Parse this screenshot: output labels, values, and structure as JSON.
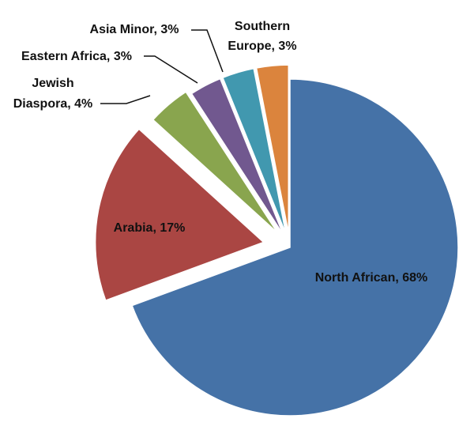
{
  "chart_data": {
    "type": "pie",
    "title": "",
    "legend": "none",
    "exploded": true,
    "slices": [
      {
        "name": "North African",
        "value": 68,
        "label": "North African, 68%",
        "color": "#4572A7"
      },
      {
        "name": "Arabia",
        "value": 17,
        "label": "Arabia, 17%",
        "color": "#AA4643"
      },
      {
        "name": "Jewish Diaspora",
        "value": 4,
        "label_lines": [
          "Jewish",
          "Diaspora, 4%"
        ],
        "color": "#89A54E"
      },
      {
        "name": "Eastern Africa",
        "value": 3,
        "label": "Eastern Africa, 3%",
        "color": "#71588F"
      },
      {
        "name": "Asia Minor",
        "value": 3,
        "label": "Asia Minor, 3%",
        "color": "#4198AF"
      },
      {
        "name": "Southern Europe",
        "value": 3,
        "label_lines": [
          "Southern",
          "Europe, 3%"
        ],
        "color": "#DB843D"
      }
    ]
  }
}
